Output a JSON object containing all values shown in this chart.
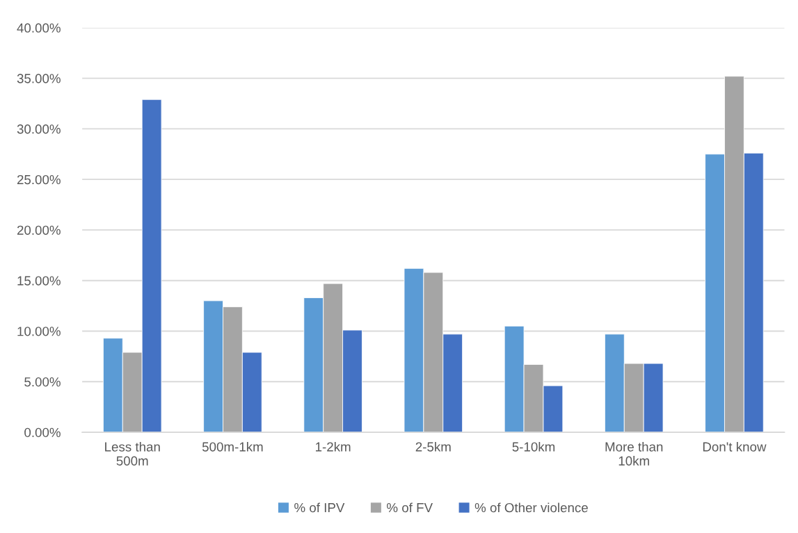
{
  "chart_data": {
    "type": "bar",
    "categories": [
      "Less than\n500m",
      "500m-1km",
      "1-2km",
      "2-5km",
      "5-10km",
      "More than\n10km",
      "Don't know"
    ],
    "series": [
      {
        "name": "% of IPV",
        "color": "#5b9bd5",
        "values": [
          9.3,
          13.0,
          13.3,
          16.2,
          10.5,
          9.7,
          27.5
        ]
      },
      {
        "name": "% of FV",
        "color": "#a5a5a5",
        "values": [
          7.9,
          12.4,
          14.7,
          15.8,
          6.7,
          6.8,
          35.2
        ]
      },
      {
        "name": "% of Other violence",
        "color": "#4472c4",
        "values": [
          32.9,
          7.9,
          10.1,
          9.7,
          4.6,
          6.8,
          27.6
        ]
      }
    ],
    "ylim": [
      0,
      40
    ],
    "yticks": [
      {
        "value": 0,
        "label": "0.00%"
      },
      {
        "value": 5,
        "label": "5.00%"
      },
      {
        "value": 10,
        "label": "10.00%"
      },
      {
        "value": 15,
        "label": "15.00%"
      },
      {
        "value": 20,
        "label": "20.00%"
      },
      {
        "value": 25,
        "label": "25.00%"
      },
      {
        "value": 30,
        "label": "30.00%"
      },
      {
        "value": 35,
        "label": "35.00%"
      },
      {
        "value": 40,
        "label": "40.00%"
      }
    ],
    "grid": "y",
    "legend": "bottom"
  }
}
